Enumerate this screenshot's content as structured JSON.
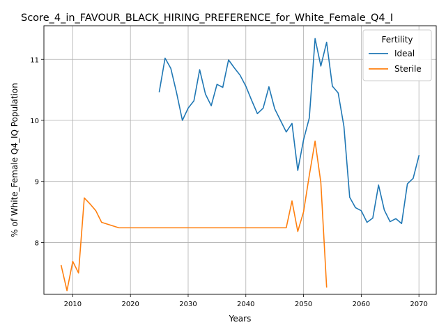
{
  "chart_data": {
    "type": "line",
    "title": "Score_4_in_FAVOUR_BLACK_HIRING_PREFERENCE_for_White_Female_Q4_I",
    "xlabel": "Years",
    "ylabel": "% of White_Female Q4_IQ Population",
    "xlim": [
      2005,
      2073
    ],
    "ylim": [
      7.15,
      11.55
    ],
    "xticks": [
      2010,
      2020,
      2030,
      2040,
      2050,
      2060,
      2070
    ],
    "yticks": [
      8,
      9,
      10,
      11
    ],
    "grid": true,
    "legend": {
      "title": "Fertility",
      "placement": "upper right"
    },
    "series": [
      {
        "name": "Ideal",
        "color": "#1f77b4",
        "points": [
          [
            2025,
            10.47
          ],
          [
            2026,
            11.02
          ],
          [
            2027,
            10.85
          ],
          [
            2028,
            10.45
          ],
          [
            2029,
            10.0
          ],
          [
            2030,
            10.2
          ],
          [
            2031,
            10.32
          ],
          [
            2032,
            10.83
          ],
          [
            2033,
            10.43
          ],
          [
            2034,
            10.24
          ],
          [
            2035,
            10.59
          ],
          [
            2036,
            10.54
          ],
          [
            2037,
            10.99
          ],
          [
            2038,
            10.86
          ],
          [
            2039,
            10.74
          ],
          [
            2040,
            10.56
          ],
          [
            2041,
            10.33
          ],
          [
            2042,
            10.11
          ],
          [
            2043,
            10.2
          ],
          [
            2044,
            10.55
          ],
          [
            2045,
            10.19
          ],
          [
            2046,
            10.0
          ],
          [
            2047,
            9.81
          ],
          [
            2048,
            9.95
          ],
          [
            2049,
            9.18
          ],
          [
            2050,
            9.68
          ],
          [
            2051,
            10.04
          ],
          [
            2052,
            11.34
          ],
          [
            2053,
            10.89
          ],
          [
            2054,
            11.28
          ],
          [
            2055,
            10.56
          ],
          [
            2056,
            10.45
          ],
          [
            2057,
            9.9
          ],
          [
            2058,
            8.74
          ],
          [
            2059,
            8.57
          ],
          [
            2060,
            8.52
          ],
          [
            2061,
            8.33
          ],
          [
            2062,
            8.4
          ],
          [
            2063,
            8.94
          ],
          [
            2064,
            8.53
          ],
          [
            2065,
            8.34
          ],
          [
            2066,
            8.39
          ],
          [
            2067,
            8.31
          ],
          [
            2068,
            8.96
          ],
          [
            2069,
            9.05
          ],
          [
            2070,
            9.42
          ]
        ]
      },
      {
        "name": "Sterile",
        "color": "#ff7f0e",
        "points": [
          [
            2008,
            7.62
          ],
          [
            2009,
            7.21
          ],
          [
            2010,
            7.69
          ],
          [
            2011,
            7.5
          ],
          [
            2012,
            8.73
          ],
          [
            2013,
            8.63
          ],
          [
            2014,
            8.52
          ],
          [
            2015,
            8.33
          ],
          [
            2016,
            8.3
          ],
          [
            2017,
            8.27
          ],
          [
            2018,
            8.24
          ],
          [
            2019,
            8.24
          ],
          [
            2020,
            8.24
          ],
          [
            2021,
            8.24
          ],
          [
            2022,
            8.24
          ],
          [
            2023,
            8.24
          ],
          [
            2024,
            8.24
          ],
          [
            2025,
            8.24
          ],
          [
            2026,
            8.24
          ],
          [
            2027,
            8.24
          ],
          [
            2028,
            8.24
          ],
          [
            2029,
            8.24
          ],
          [
            2030,
            8.24
          ],
          [
            2031,
            8.24
          ],
          [
            2032,
            8.24
          ],
          [
            2033,
            8.24
          ],
          [
            2034,
            8.24
          ],
          [
            2035,
            8.24
          ],
          [
            2036,
            8.24
          ],
          [
            2037,
            8.24
          ],
          [
            2038,
            8.24
          ],
          [
            2039,
            8.24
          ],
          [
            2040,
            8.24
          ],
          [
            2041,
            8.24
          ],
          [
            2042,
            8.24
          ],
          [
            2043,
            8.24
          ],
          [
            2044,
            8.24
          ],
          [
            2045,
            8.24
          ],
          [
            2046,
            8.24
          ],
          [
            2047,
            8.24
          ],
          [
            2048,
            8.68
          ],
          [
            2049,
            8.18
          ],
          [
            2050,
            8.5
          ],
          [
            2051,
            9.1
          ],
          [
            2052,
            9.66
          ],
          [
            2053,
            8.98
          ],
          [
            2054,
            7.27
          ]
        ]
      }
    ]
  }
}
